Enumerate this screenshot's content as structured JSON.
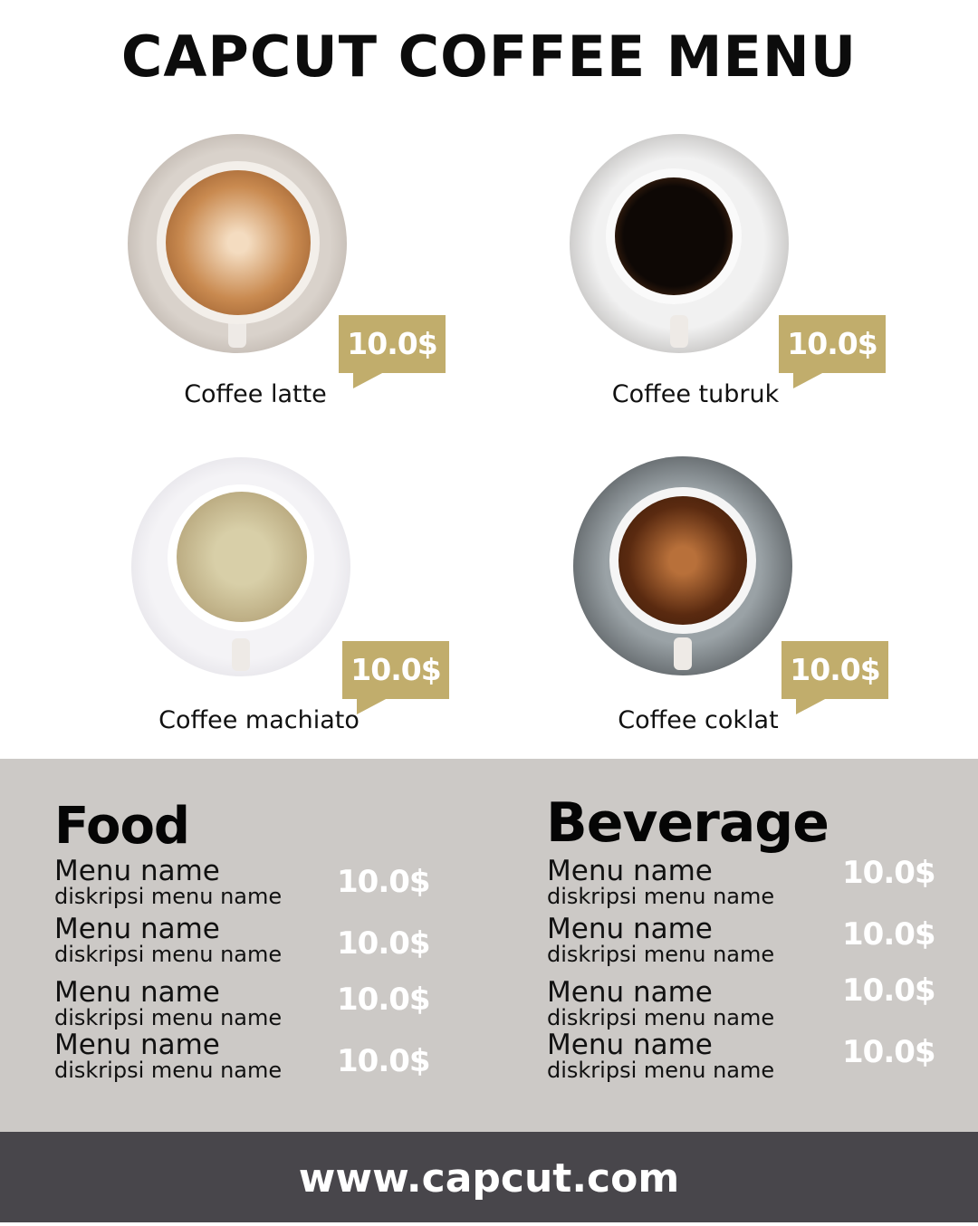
{
  "title": "CAPCUT COFFEE MENU",
  "colors": {
    "accent": "#c1ad6c",
    "band": "#ccc9c6",
    "footer": "#48464b"
  },
  "products": [
    {
      "name": "Coffee latte",
      "price": "10.0$"
    },
    {
      "name": "Coffee tubruk",
      "price": "10.0$"
    },
    {
      "name": "Coffee machiato",
      "price": "10.0$"
    },
    {
      "name": "Coffee coklat",
      "price": "10.0$"
    }
  ],
  "food": {
    "title": "Food",
    "items": [
      {
        "name": "Menu name",
        "desc": "diskripsi menu name",
        "price": "10.0$"
      },
      {
        "name": "Menu name",
        "desc": "diskripsi menu name",
        "price": "10.0$"
      },
      {
        "name": "Menu name",
        "desc": "diskripsi menu name",
        "price": "10.0$"
      },
      {
        "name": "Menu name",
        "desc": "diskripsi menu name",
        "price": "10.0$"
      }
    ]
  },
  "beverage": {
    "title": "Beverage",
    "items": [
      {
        "name": "Menu name",
        "desc": "diskripsi menu name",
        "price": "10.0$"
      },
      {
        "name": "Menu name",
        "desc": "diskripsi menu name",
        "price": "10.0$"
      },
      {
        "name": "Menu name",
        "desc": "diskripsi menu name",
        "price": "10.0$"
      },
      {
        "name": "Menu name",
        "desc": "diskripsi menu name",
        "price": "10.0$"
      }
    ]
  },
  "footer": {
    "url": "www.capcut.com"
  }
}
